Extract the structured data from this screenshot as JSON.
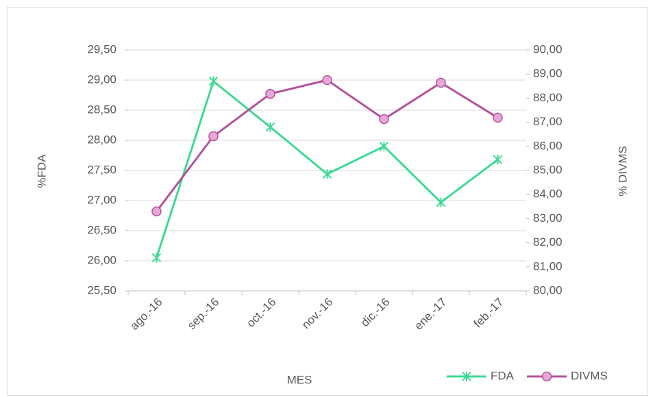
{
  "chart_data": {
    "type": "line",
    "categories": [
      "ago.-16",
      "sep.-16",
      "oct.-16",
      "nov.-16",
      "dic.-16",
      "ene.-17",
      "feb.-17"
    ],
    "series": [
      {
        "name": "FDA",
        "color": "#3fd994",
        "values": [
          26.05,
          28.98,
          28.22,
          27.44,
          27.9,
          26.97,
          27.68
        ]
      },
      {
        "name": "DIVMS",
        "color": "#b4529d",
        "axis": "y2",
        "values": [
          83.3,
          86.42,
          88.18,
          88.75,
          87.13,
          88.64,
          87.19
        ]
      }
    ],
    "ylabel": "%FDA",
    "y2label": "% DIVMS",
    "xlabel": "MES",
    "ylim": [
      25.5,
      29.5
    ],
    "yticks": [
      {
        "value": 25.5,
        "label": "25,50"
      },
      {
        "value": 26,
        "label": "26,00"
      },
      {
        "value": 26.5,
        "label": "26,50"
      },
      {
        "value": 27,
        "label": "27,00"
      },
      {
        "value": 27.5,
        "label": "27,50"
      },
      {
        "value": 28,
        "label": "28,00"
      },
      {
        "value": 28.5,
        "label": "28,50"
      },
      {
        "value": 29,
        "label": "29,00"
      },
      {
        "value": 29.5,
        "label": "29,50"
      }
    ],
    "y2lim": [
      80,
      90
    ],
    "y2ticks": [
      {
        "value": 80,
        "label": "80,00"
      },
      {
        "value": 81,
        "label": "81,00"
      },
      {
        "value": 82,
        "label": "82,00"
      },
      {
        "value": 83,
        "label": "83,00"
      },
      {
        "value": 84,
        "label": "84,00"
      },
      {
        "value": 85,
        "label": "85,00"
      },
      {
        "value": 86,
        "label": "86,00"
      },
      {
        "value": 87,
        "label": "87,00"
      },
      {
        "value": 88,
        "label": "88,00"
      },
      {
        "value": 89,
        "label": "89,00"
      },
      {
        "value": 90,
        "label": "90,00"
      }
    ],
    "grid": true,
    "legend": "bottom-right"
  }
}
